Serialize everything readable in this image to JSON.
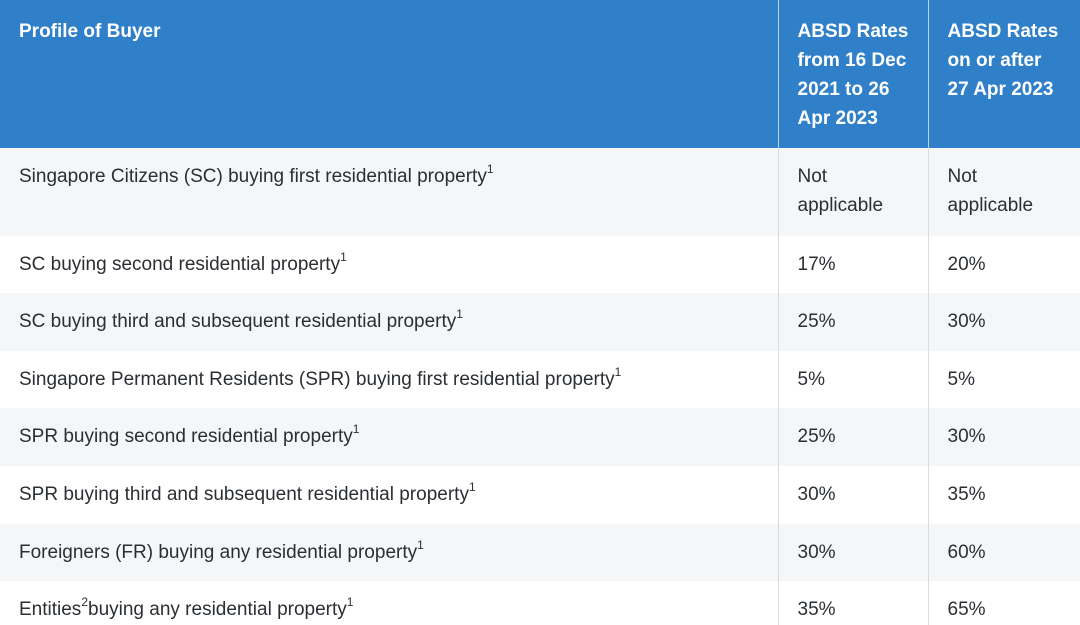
{
  "header": {
    "col1": "Profile of Buyer",
    "col2": "ABSD Rates from 16 Dec 2021 to 26 Apr 2023",
    "col3": "ABSD Rates on or after 27 Apr 2023"
  },
  "rows": [
    {
      "profile": "Singapore Citizens (SC) buying first residential property",
      "note": "1",
      "rate_old": "Not applicable",
      "rate_new": "Not applicable"
    },
    {
      "profile": "SC buying second residential property",
      "note": "1",
      "rate_old": "17%",
      "rate_new": "20%"
    },
    {
      "profile": "SC buying third and subsequent residential property",
      "note": "1",
      "rate_old": "25%",
      "rate_new": "30%"
    },
    {
      "profile": "Singapore Permanent Residents (SPR) buying first residential property",
      "note": "1",
      "rate_old": "5%",
      "rate_new": "5%"
    },
    {
      "profile": "SPR buying second residential property",
      "note": "1",
      "rate_old": "25%",
      "rate_new": "30%"
    },
    {
      "profile": "SPR buying third and subsequent residential property",
      "note": "1",
      "rate_old": "30%",
      "rate_new": "35%"
    },
    {
      "profile": "Foreigners (FR) buying any residential property",
      "note": "1",
      "rate_old": "30%",
      "rate_new": "60%"
    },
    {
      "profile_prefix": "Entities",
      "prefix_note": "2",
      "profile": "buying any residential property",
      "note": "1",
      "rate_old": "35%",
      "rate_new": "65%"
    }
  ]
}
